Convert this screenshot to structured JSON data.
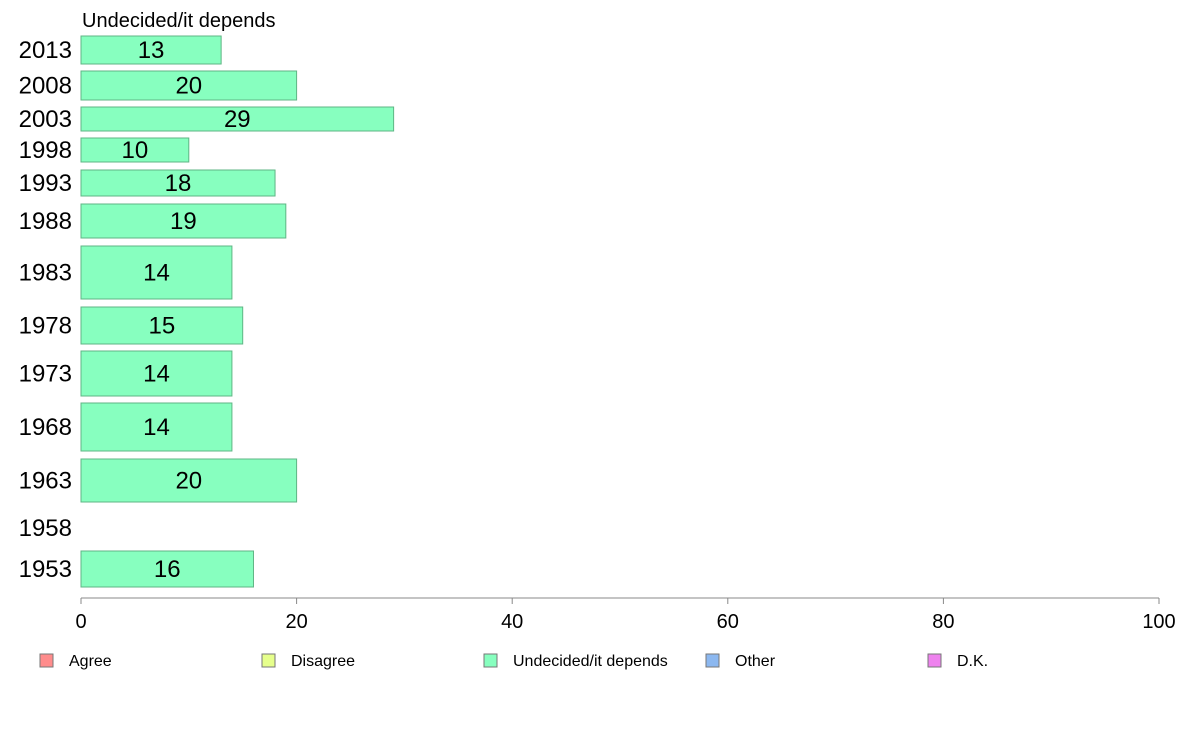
{
  "chart_data": {
    "type": "bar",
    "orientation": "horizontal",
    "title": "Undecided/it depends",
    "categories": [
      "2013",
      "2008",
      "2003",
      "1998",
      "1993",
      "1988",
      "1983",
      "1978",
      "1973",
      "1968",
      "1963",
      "1958",
      "1953"
    ],
    "series": [
      {
        "name": "Undecided/it depends",
        "color": "#87ffbf",
        "values": [
          13,
          20,
          29,
          10,
          18,
          19,
          14,
          15,
          14,
          14,
          20,
          null,
          16
        ]
      }
    ],
    "xlim": [
      0,
      100
    ],
    "xticks": [
      0,
      20,
      40,
      60,
      80,
      100
    ],
    "grid": false,
    "legend": {
      "position": "bottom",
      "entries": [
        {
          "label": "Agree",
          "color": "#ff8c8c"
        },
        {
          "label": "Disagree",
          "color": "#e6ff8c"
        },
        {
          "label": "Undecided/it depends",
          "color": "#87ffbf"
        },
        {
          "label": "Other",
          "color": "#8cb8f0"
        },
        {
          "label": "D.K.",
          "color": "#ee82ee"
        }
      ]
    }
  }
}
